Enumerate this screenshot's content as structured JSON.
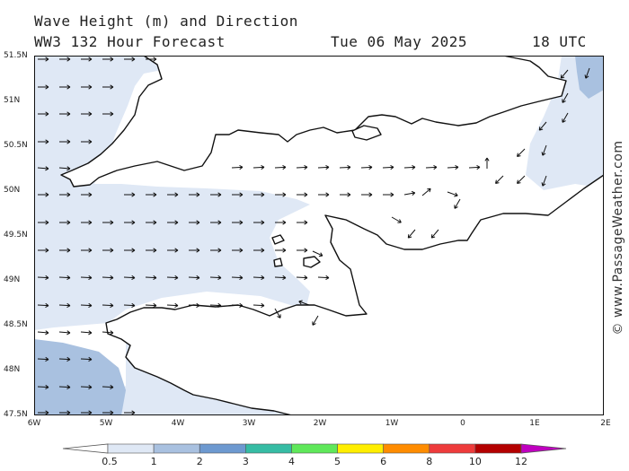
{
  "header": {
    "title": "Wave Height (m) and Direction",
    "model": "WW3 132 Hour Forecast",
    "date": "Tue 06 May 2025",
    "time": "18 UTC"
  },
  "credit": "© www.PassageWeather.com",
  "map": {
    "lat_labels": [
      "51.5N",
      "51N",
      "50.5N",
      "50N",
      "49.5N",
      "49N",
      "48.5N",
      "48N",
      "47.5N"
    ],
    "lon_labels": [
      "6W",
      "5W",
      "4W",
      "3W",
      "2W",
      "1W",
      "0",
      "1E",
      "2E"
    ],
    "colors": {
      "land": "#ffffff",
      "sea_lt_05": "#ffffff",
      "sea_05_1": "#dfe8f5",
      "sea_1_2": "#a9c1e0",
      "coast": "#111111"
    },
    "arrow_icon": "wave-direction-arrow"
  },
  "legend": {
    "labels": [
      "0.5",
      "1",
      "2",
      "3",
      "4",
      "5",
      "6",
      "8",
      "10",
      "12"
    ],
    "colors": [
      "#dfe8f5",
      "#a9c1e0",
      "#6d99d0",
      "#36bca4",
      "#5fe85a",
      "#ffee00",
      "#ff8c00",
      "#ee3b3b",
      "#b40000",
      "#c000c0"
    ]
  }
}
